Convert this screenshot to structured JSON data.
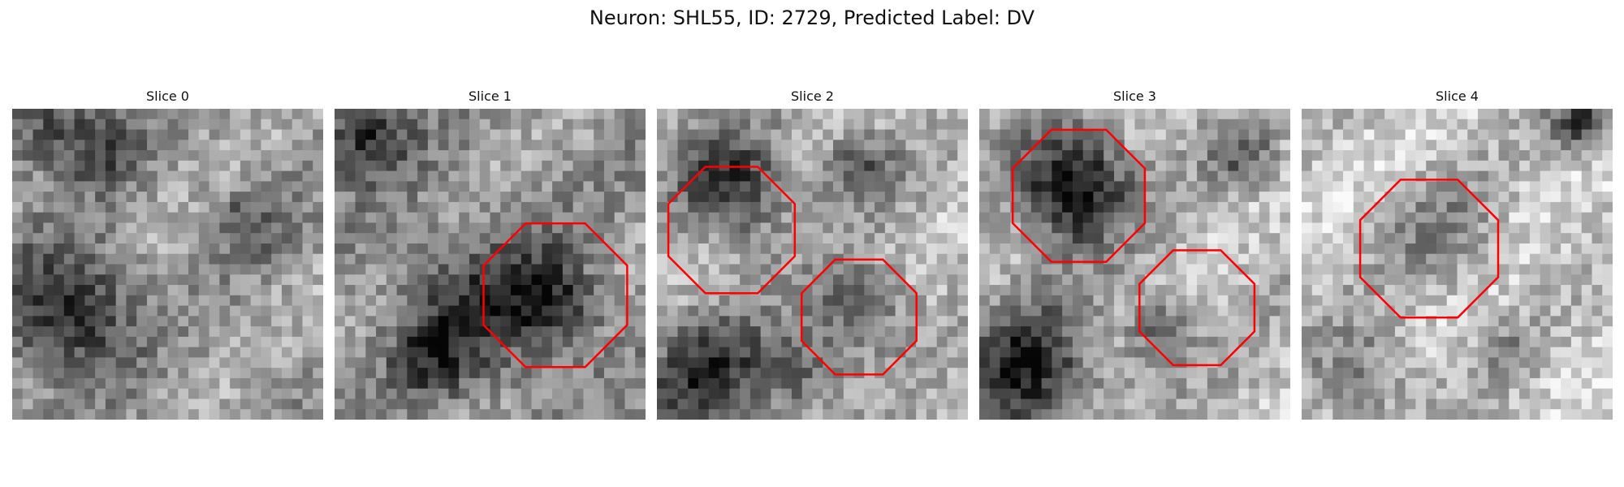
{
  "figure": {
    "title": "Neuron: SHL55, ID: 2729, Predicted Label: DV"
  },
  "panels": [
    {
      "title": "Slice 0",
      "contours": []
    },
    {
      "title": "Slice 1",
      "contours": [
        "roi"
      ]
    },
    {
      "title": "Slice 2",
      "contours": [
        "roi",
        "roi"
      ]
    },
    {
      "title": "Slice 3",
      "contours": [
        "roi",
        "roi"
      ]
    },
    {
      "title": "Slice 4",
      "contours": [
        "roi"
      ]
    }
  ],
  "style": {
    "contour_color": "#ff0000",
    "colormap": "grayscale"
  }
}
